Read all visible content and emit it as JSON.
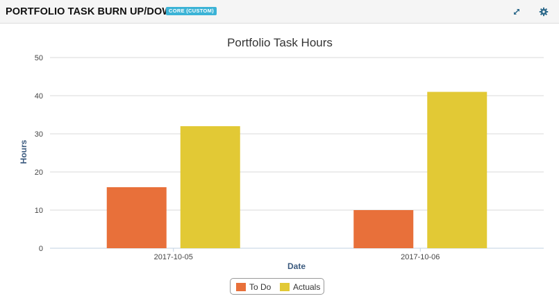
{
  "panel": {
    "title": "PORTFOLIO TASK BURN UP/DOWN",
    "badge": "CORE (CUSTOM)",
    "icons": {
      "expand": "expand-icon",
      "settings": "gear-icon"
    }
  },
  "colors": {
    "todo": "#e8703a",
    "actuals": "#e2c935",
    "accent": "#3bb3d6",
    "axis_title": "#3b5a7e"
  },
  "chart_data": {
    "type": "bar",
    "title": "Portfolio Task Hours",
    "xlabel": "Date",
    "ylabel": "Hours",
    "categories": [
      "2017-10-05",
      "2017-10-06"
    ],
    "series": [
      {
        "name": "To Do",
        "values": [
          16,
          10
        ]
      },
      {
        "name": "Actuals",
        "values": [
          32,
          41
        ]
      }
    ],
    "ylim": [
      0,
      50
    ],
    "yticks": [
      0,
      10,
      20,
      30,
      40,
      50
    ],
    "grid": true,
    "legend_position": "bottom-center"
  }
}
